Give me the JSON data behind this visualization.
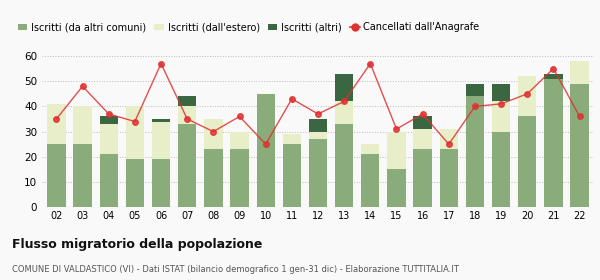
{
  "years": [
    "02",
    "03",
    "04",
    "05",
    "06",
    "07",
    "08",
    "09",
    "10",
    "11",
    "12",
    "13",
    "14",
    "15",
    "16",
    "17",
    "18",
    "19",
    "20",
    "21",
    "22"
  ],
  "iscritti_comuni": [
    25,
    25,
    21,
    19,
    19,
    33,
    23,
    23,
    45,
    25,
    27,
    33,
    21,
    15,
    23,
    23,
    44,
    30,
    36,
    51,
    49
  ],
  "iscritti_estero": [
    16,
    15,
    12,
    21,
    15,
    7,
    12,
    7,
    0,
    4,
    3,
    9,
    4,
    15,
    8,
    8,
    0,
    12,
    16,
    0,
    9
  ],
  "iscritti_altri": [
    0,
    0,
    3,
    0,
    1,
    4,
    0,
    0,
    0,
    0,
    5,
    11,
    0,
    0,
    5,
    0,
    5,
    7,
    0,
    2,
    0
  ],
  "cancellati": [
    35,
    48,
    37,
    34,
    57,
    35,
    30,
    36,
    25,
    43,
    37,
    42,
    57,
    31,
    37,
    25,
    40,
    41,
    45,
    55,
    36
  ],
  "color_comuni": "#8aab7a",
  "color_estero": "#e8eec8",
  "color_altri": "#3a6641",
  "color_cancellati": "#e03030",
  "title": "Flusso migratorio della popolazione",
  "subtitle": "COMUNE DI VALDASTICO (VI) - Dati ISTAT (bilancio demografico 1 gen-31 dic) - Elaborazione TUTTITALIA.IT",
  "legend_labels": [
    "Iscritti (da altri comuni)",
    "Iscritti (dall'estero)",
    "Iscritti (altri)",
    "Cancellati dall'Anagrafe"
  ],
  "ylim": [
    0,
    60
  ],
  "yticks": [
    0,
    10,
    20,
    30,
    40,
    50,
    60
  ],
  "bg_color": "#f9f9f9"
}
